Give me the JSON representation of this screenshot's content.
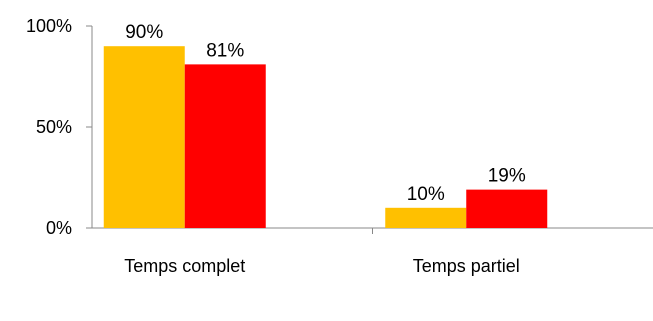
{
  "chart_data": {
    "type": "bar",
    "categories": [
      "Temps complet",
      "Temps partiel"
    ],
    "series": [
      {
        "values": [
          90,
          10
        ],
        "color": "#FFC000"
      },
      {
        "values": [
          81,
          19
        ],
        "color": "#FF0000"
      }
    ],
    "data_labels": [
      [
        "90%",
        "10%"
      ],
      [
        "81%",
        "19%"
      ]
    ],
    "y_ticks": [
      {
        "value": 0,
        "label": "0%"
      },
      {
        "value": 50,
        "label": "50%"
      },
      {
        "value": 100,
        "label": "100%"
      }
    ],
    "ylim": [
      0,
      100
    ],
    "grid": false,
    "legend": "none",
    "title": "",
    "xlabel": "",
    "ylabel": ""
  }
}
